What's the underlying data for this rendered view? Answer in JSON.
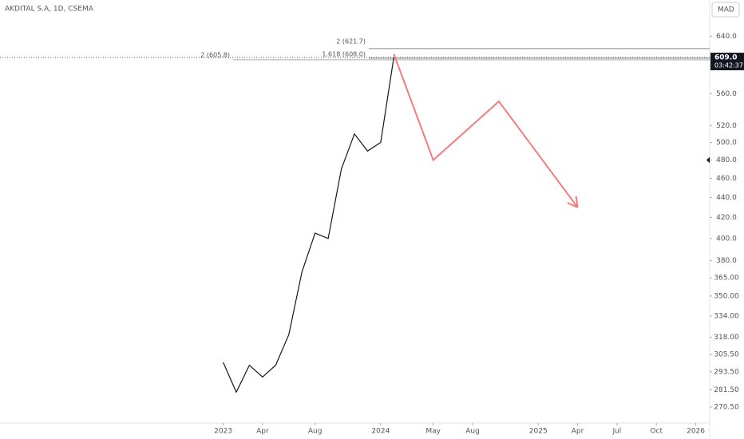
{
  "chart_data": {
    "type": "line",
    "title": "AKDITAL S.A, 1D, CSEMA",
    "currency": "MAD",
    "log_scale": true,
    "x": [
      "2023-01",
      "2023-02",
      "2023-03",
      "2023-04",
      "2023-05",
      "2023-06",
      "2023-07",
      "2023-08",
      "2023-09",
      "2023-10",
      "2023-11",
      "2023-12",
      "2024-01",
      "2024-02"
    ],
    "values": [
      300,
      280,
      298,
      290,
      298,
      320,
      370,
      405,
      400,
      470,
      510,
      490,
      500,
      609
    ],
    "color": "#131722",
    "projection": {
      "x": [
        "2024-02",
        "2024-05",
        "2024-10",
        "2025-04"
      ],
      "values": [
        614,
        480,
        550,
        430
      ],
      "color": "#f07d80"
    },
    "levels": [
      {
        "value": 621.7,
        "label": "2 (621.7)"
      },
      {
        "value": 608.0,
        "label": "1.618 (608.0)"
      },
      {
        "value": 605.8,
        "label": "2 (605.8)"
      }
    ],
    "last_price": {
      "value": 609.0,
      "label": "609.0"
    },
    "countdown": "03:42:37",
    "xlim": [
      "2021-08",
      "2026-02"
    ],
    "xticks": [
      {
        "value": "2023-01",
        "label": "2023"
      },
      {
        "value": "2023-04",
        "label": "Apr"
      },
      {
        "value": "2023-08",
        "label": "Aug"
      },
      {
        "value": "2024-01",
        "label": "2024"
      },
      {
        "value": "2024-05",
        "label": "May"
      },
      {
        "value": "2024-08",
        "label": "Aug"
      },
      {
        "value": "2025-01",
        "label": "2025"
      },
      {
        "value": "2025-04",
        "label": "Apr"
      },
      {
        "value": "2025-07",
        "label": "Jul"
      },
      {
        "value": "2025-10",
        "label": "Oct"
      },
      {
        "value": "2026-01",
        "label": "2026"
      }
    ],
    "ylim": [
      260.6,
      696
    ],
    "yticks": [
      {
        "value": 640,
        "label": "640.0"
      },
      {
        "value": 560,
        "label": "560.0"
      },
      {
        "value": 520,
        "label": "520.0"
      },
      {
        "value": 500,
        "label": "500.0"
      },
      {
        "value": 480,
        "label": "480.0"
      },
      {
        "value": 460,
        "label": "460.0"
      },
      {
        "value": 440,
        "label": "440.0"
      },
      {
        "value": 420,
        "label": "420.0"
      },
      {
        "value": 400,
        "label": "400.0"
      },
      {
        "value": 380,
        "label": "380.0"
      },
      {
        "value": 365,
        "label": "365.00"
      },
      {
        "value": 350,
        "label": "350.00"
      },
      {
        "value": 334,
        "label": "334.00"
      },
      {
        "value": 318,
        "label": "318.00"
      },
      {
        "value": 305.5,
        "label": "305.50"
      },
      {
        "value": 293.5,
        "label": "293.50"
      },
      {
        "value": 281.5,
        "label": "281.50"
      },
      {
        "value": 270.5,
        "label": "270.50"
      }
    ]
  }
}
